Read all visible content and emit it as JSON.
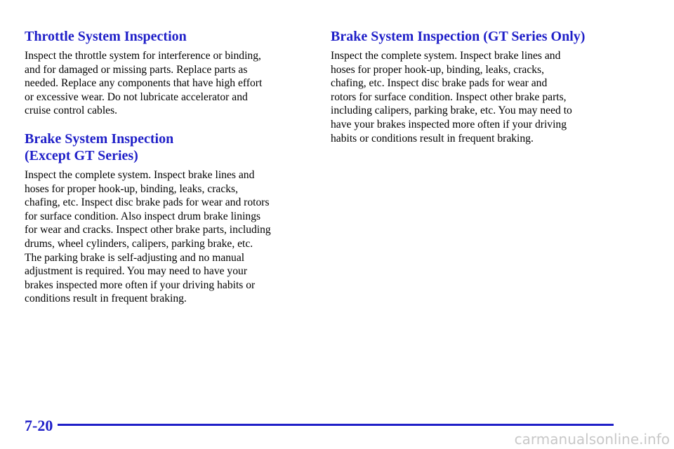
{
  "left": {
    "sections": [
      {
        "heading": [
          "Throttle System Inspection"
        ],
        "lines": [
          "Inspect the throttle system for interference or binding,",
          "and for damaged or missing parts. Replace parts as",
          "needed. Replace any components that have high effort",
          "or excessive wear. Do not lubricate accelerator and",
          "cruise control cables."
        ]
      },
      {
        "heading": [
          "Brake System Inspection",
          "(Except GT Series)"
        ],
        "lines": [
          "Inspect the complete system. Inspect brake lines and",
          "hoses for proper hook-up, binding, leaks, cracks,",
          "chafing, etc. Inspect disc brake pads for wear and rotors",
          "for surface condition. Also inspect drum brake linings",
          "for wear and cracks. Inspect other brake parts, including",
          "drums, wheel cylinders, calipers, parking brake, etc.",
          "The parking brake is self-adjusting and no manual",
          "adjustment is required. You may need to have your",
          "brakes inspected more often if your driving habits or",
          "conditions result in frequent braking."
        ]
      }
    ]
  },
  "right": {
    "sections": [
      {
        "heading": [
          "Brake System Inspection (GT Series Only)"
        ],
        "lines": [
          "Inspect the complete system. Inspect brake lines and",
          "hoses for proper hook-up, binding, leaks, cracks,",
          "chafing, etc. Inspect disc brake pads for wear and",
          "rotors for surface condition. Inspect other brake parts,",
          "including calipers, parking brake, etc. You may need to",
          "have your brakes inspected more often if your driving",
          "habits or conditions result in frequent braking."
        ]
      }
    ]
  },
  "footer": {
    "page_number": "7-20",
    "watermark": "carmanualsonline.info"
  }
}
